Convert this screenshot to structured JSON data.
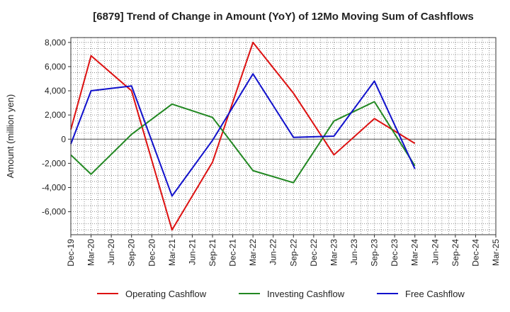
{
  "chart_data": {
    "type": "line",
    "title": "[6879]  Trend of Change in Amount (YoY) of 12Mo Moving Sum of Cashflows",
    "xlabel": "",
    "ylabel": "Amount (million yen)",
    "ylim": [
      -7900,
      8400
    ],
    "yticks": [
      -6000,
      -4000,
      -2000,
      0,
      2000,
      4000,
      6000,
      8000
    ],
    "ytick_labels": [
      "-6,000",
      "-4,000",
      "-2,000",
      "0",
      "2,000",
      "4,000",
      "6,000",
      "8,000"
    ],
    "categories": [
      "Dec-19",
      "Mar-20",
      "Jun-20",
      "Sep-20",
      "Dec-20",
      "Mar-21",
      "Jun-21",
      "Sep-21",
      "Dec-21",
      "Mar-22",
      "Jun-22",
      "Sep-22",
      "Dec-22",
      "Mar-23",
      "Jun-23",
      "Sep-23",
      "Dec-23",
      "Mar-24",
      "Jun-24",
      "Sep-24",
      "Dec-24",
      "Mar-25"
    ],
    "grid": true,
    "legend_position": "bottom",
    "series": [
      {
        "name": "Operating Cashflow",
        "color": "#dd1111",
        "values": [
          800,
          6900,
          null,
          4000,
          null,
          -7500,
          null,
          -1900,
          null,
          8000,
          null,
          3800,
          null,
          -1300,
          null,
          1700,
          null,
          -350,
          null,
          null,
          null,
          null
        ]
      },
      {
        "name": "Investing Cashflow",
        "color": "#228822",
        "values": [
          -1300,
          -2900,
          null,
          400,
          null,
          2900,
          null,
          1800,
          null,
          -2600,
          null,
          -3600,
          null,
          1500,
          null,
          3100,
          null,
          -2200,
          null,
          null,
          null,
          null
        ]
      },
      {
        "name": "Free Cashflow",
        "color": "#1111cc",
        "values": [
          -400,
          4000,
          null,
          4400,
          null,
          -4700,
          null,
          -100,
          null,
          5400,
          null,
          150,
          null,
          250,
          null,
          4800,
          null,
          -2450,
          null,
          null,
          null,
          null
        ]
      }
    ]
  }
}
